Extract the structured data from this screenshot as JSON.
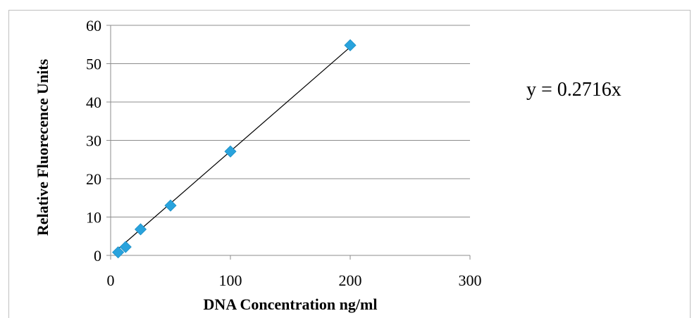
{
  "chart_data": {
    "type": "scatter",
    "xlabel": "DNA Concentration ng/ml",
    "ylabel": "Relative Fluorecence Units",
    "xlim": [
      0,
      300
    ],
    "ylim": [
      0,
      60
    ],
    "xticks": [
      "0",
      "100",
      "200",
      "300"
    ],
    "yticks": [
      "0",
      "10",
      "20",
      "30",
      "40",
      "50",
      "60"
    ],
    "grid": "horizontal",
    "legend": "none",
    "marker_color": "#29a3dd",
    "trendline": {
      "type": "linear",
      "slope": 0.2716,
      "x_range": [
        6.25,
        200
      ],
      "equation": "y = 0.2716x"
    },
    "points": [
      {
        "x": 6.25,
        "y": 0.8
      },
      {
        "x": 12.5,
        "y": 2.2
      },
      {
        "x": 25,
        "y": 6.8
      },
      {
        "x": 50,
        "y": 13.0
      },
      {
        "x": 100,
        "y": 27.1
      },
      {
        "x": 200,
        "y": 54.8
      }
    ]
  }
}
